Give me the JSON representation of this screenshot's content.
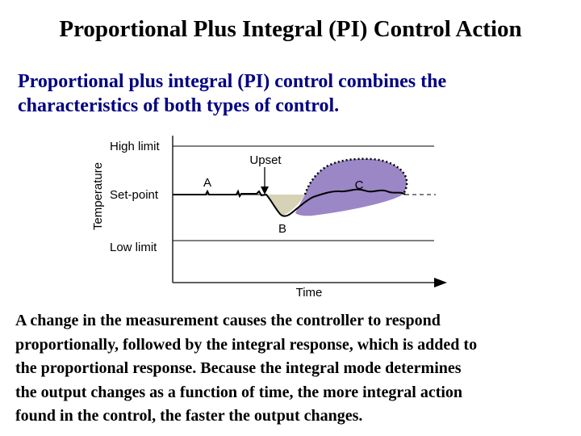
{
  "title": "Proportional Plus Integral (PI) Control Action",
  "intro": {
    "line1": "Proportional plus integral (PI) control combines the",
    "line2": "characteristics of both types of control."
  },
  "diagram": {
    "y_axis_label": "Temperature",
    "x_axis_label": "Time",
    "high_limit": "High limit",
    "set_point": "Set-point",
    "low_limit": "Low limit",
    "upset_label": "Upset",
    "point_a": "A",
    "point_b": "B",
    "point_c": "C",
    "colors": {
      "proportional_area": "#d6d2b6",
      "integral_area": "#9b86c6",
      "title_text": "#000000",
      "intro_text": "#000080"
    }
  },
  "body": {
    "line1": "A change in the measurement causes the controller to respond",
    "line2": "proportionally, followed by the integral response, which is added to",
    "line3": "the proportional response. Because the integral mode determines",
    "line4": "the output changes as a function of time, the more integral action",
    "line5": "found in the control, the faster the output changes."
  }
}
